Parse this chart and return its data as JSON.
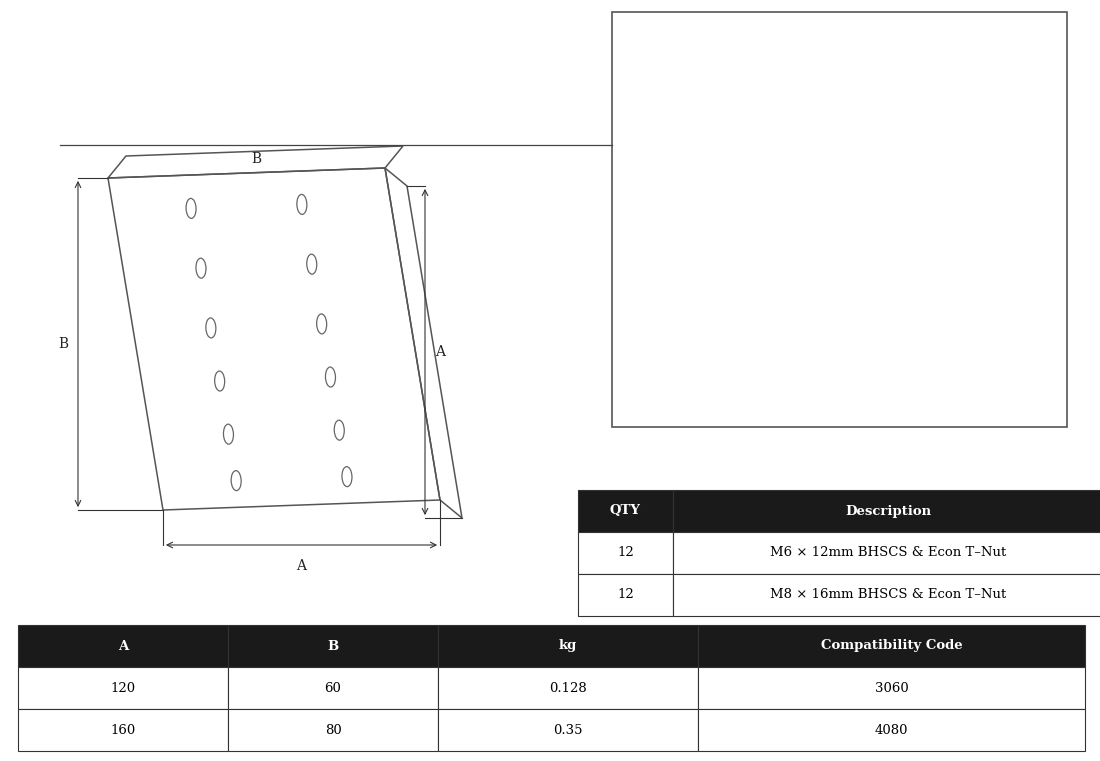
{
  "bg_color": "#ffffff",
  "table1_headers": [
    "QTY",
    "Description"
  ],
  "table1_rows": [
    [
      "12",
      "M6 × 12mm BHSCS & Econ T–Nut"
    ],
    [
      "12",
      "M8 × 16mm BHSCS & Econ T–Nut"
    ]
  ],
  "table2_headers": [
    "A",
    "B",
    "kg",
    "Compatibility Code"
  ],
  "table2_rows": [
    [
      "120",
      "60",
      "0.128",
      "3060"
    ],
    [
      "160",
      "80",
      "0.35",
      "4080"
    ]
  ],
  "header_bg": "#1a1a1a",
  "header_fg": "#ffffff",
  "cell_bg": "#ffffff",
  "cell_fg": "#000000",
  "border_color": "#333333",
  "label_A": "A",
  "label_B": "B",
  "line_color": "#444444",
  "dim_color": "#333333"
}
